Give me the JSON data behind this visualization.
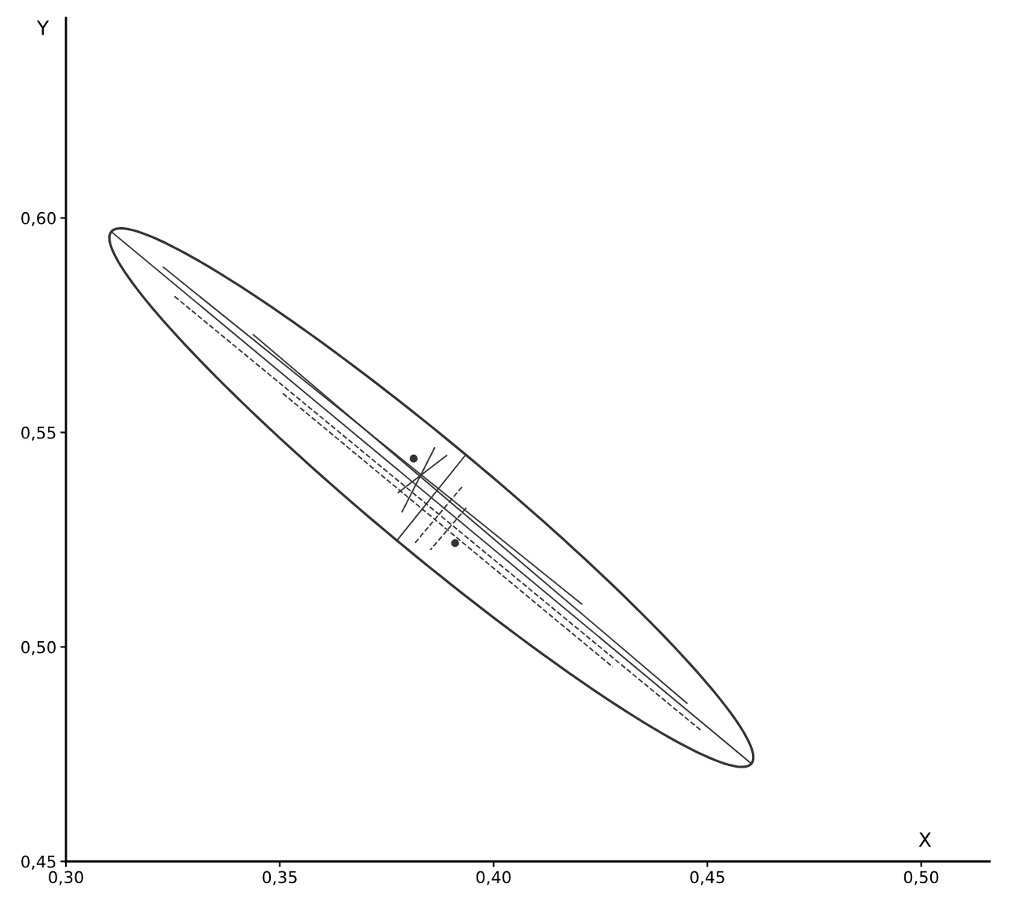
{
  "chart_data": {
    "type": "line",
    "xlabel": "X",
    "ylabel": "Y",
    "xlim": [
      0.3,
      0.516
    ],
    "ylim": [
      0.45,
      0.6466
    ],
    "xticks": [
      {
        "value": 0.3,
        "label": "0,30"
      },
      {
        "value": 0.35,
        "label": "0,35"
      },
      {
        "value": 0.4,
        "label": "0,40"
      },
      {
        "value": 0.45,
        "label": "0,45"
      },
      {
        "value": 0.5,
        "label": "0,50"
      }
    ],
    "yticks": [
      {
        "value": 0.45,
        "label": "0,45"
      },
      {
        "value": 0.5,
        "label": "0,50"
      },
      {
        "value": 0.55,
        "label": "0,55"
      },
      {
        "value": 0.6,
        "label": "0,60"
      }
    ],
    "series": [
      {
        "color": "#333333",
        "line_style": "solid",
        "x": [
          0.3106,
          0.4603
        ],
        "values": [
          0.5968,
          0.4728
        ]
      },
      {
        "color": "#333333",
        "line_style": "solid",
        "x": [
          0.3774,
          0.3935
        ],
        "values": [
          0.5248,
          0.5448
        ]
      },
      {
        "color": "#333333",
        "line_style": "solid",
        "x": [
          0.3228,
          0.4206
        ],
        "values": [
          0.5885,
          0.51
        ]
      },
      {
        "color": "#333333",
        "line_style": "solid",
        "x": [
          0.3438,
          0.4452
        ],
        "values": [
          0.5728,
          0.4869
        ]
      },
      {
        "color": "#333333",
        "line_style": "dashed",
        "x": [
          0.3254,
          0.4488
        ],
        "values": [
          0.5817,
          0.4803
        ]
      },
      {
        "color": "#333333",
        "line_style": "dashed",
        "x": [
          0.3507,
          0.4279
        ],
        "values": [
          0.5591,
          0.4953
        ]
      },
      {
        "color": "#333333",
        "line_style": "solid",
        "x": [
          0.3862,
          0.3786
        ],
        "values": [
          0.5464,
          0.5315
        ]
      },
      {
        "color": "#333333",
        "line_style": "solid",
        "x": [
          0.389,
          0.3777
        ],
        "values": [
          0.5446,
          0.536
        ]
      },
      {
        "color": "#333333",
        "line_style": "dashed",
        "x": [
          0.3926,
          0.3816
        ],
        "values": [
          0.5373,
          0.5242
        ]
      },
      {
        "color": "#333333",
        "line_style": "dashed",
        "x": [
          0.3936,
          0.3852
        ],
        "values": [
          0.5324,
          0.5226
        ]
      },
      {
        "type": "scatter",
        "color": "#333333",
        "marker": "circle",
        "x": [
          0.3813,
          0.391
        ],
        "values": [
          0.5439,
          0.5242
        ]
      }
    ]
  }
}
